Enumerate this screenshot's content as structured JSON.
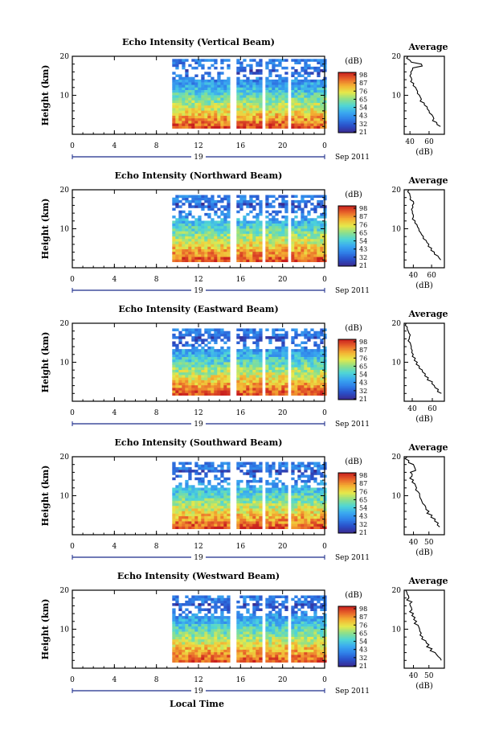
{
  "figure": {
    "xlabel": "Local Time",
    "ylabel": "Height (km)",
    "time_ticks": [
      "0",
      "4",
      "8",
      "12",
      "16",
      "20",
      "0"
    ],
    "height_ticks": [
      "20",
      "10"
    ],
    "date_day": "19",
    "date_month_year": "Sep 2011",
    "colorbar_unit": "(dB)",
    "colorbar_ticks": [
      "98",
      "87",
      "76",
      "65",
      "54",
      "43",
      "32",
      "21"
    ],
    "avg_title": "Average",
    "avg_unit": "(dB)",
    "colormap": [
      "#3a2a8e",
      "#2a4fc8",
      "#2f7fe8",
      "#3aa9f0",
      "#4fd6d6",
      "#8ee08a",
      "#e6e84a",
      "#f4b233",
      "#e8642a",
      "#c81e1e"
    ]
  },
  "chart_data": [
    {
      "type": "heatmap",
      "title": "Echo Intensity (Vertical Beam)",
      "xlabel": "",
      "ylabel": "Height (km)",
      "xlim": [
        0,
        24
      ],
      "ylim": [
        0,
        20
      ],
      "clim": [
        21,
        98
      ],
      "data_start_hour": 9.5,
      "data_gaps_hours": [
        [
          14.9,
          15.4
        ],
        [
          17.9,
          18.2
        ],
        [
          20.4,
          20.7
        ]
      ],
      "echo_top_km": 19,
      "low_echo_band_km": [
        14,
        18
      ],
      "profile": {
        "xlabel_ticks": [
          "40",
          "60"
        ],
        "xlim": [
          34,
          76
        ],
        "height_km": [
          2,
          3,
          4,
          5,
          6,
          7,
          8,
          9,
          10,
          11,
          12,
          13,
          14,
          15,
          16,
          17,
          18,
          19,
          20
        ],
        "mean_db": [
          72,
          68,
          65,
          63,
          60,
          58,
          55,
          52,
          50,
          48,
          46,
          44,
          42,
          40,
          41,
          43,
          52,
          40,
          38
        ]
      }
    },
    {
      "type": "heatmap",
      "title": "Echo Intensity (Northward Beam)",
      "xlabel": "",
      "ylabel": "Height (km)",
      "xlim": [
        0,
        24
      ],
      "ylim": [
        0,
        20
      ],
      "clim": [
        21,
        98
      ],
      "data_start_hour": 9.5,
      "data_gaps_hours": [
        [
          14.9,
          15.4
        ],
        [
          17.9,
          18.2
        ],
        [
          20.4,
          20.7
        ]
      ],
      "echo_top_km": 18,
      "low_echo_band_km": [
        12,
        15
      ],
      "profile": {
        "xlabel_ticks": [
          "40",
          "60"
        ],
        "xlim": [
          30,
          74
        ],
        "height_km": [
          2,
          3,
          4,
          5,
          6,
          7,
          8,
          9,
          10,
          11,
          12,
          13,
          14,
          15,
          16,
          17,
          18,
          19,
          20
        ],
        "mean_db": [
          70,
          67,
          63,
          60,
          57,
          54,
          51,
          48,
          46,
          44,
          42,
          40,
          39,
          38,
          39,
          40,
          37,
          36,
          35
        ]
      }
    },
    {
      "type": "heatmap",
      "title": "Echo Intensity (Eastward Beam)",
      "xlabel": "",
      "ylabel": "Height (km)",
      "xlim": [
        0,
        24
      ],
      "ylim": [
        0,
        20
      ],
      "clim": [
        21,
        98
      ],
      "data_start_hour": 9.5,
      "data_gaps_hours": [
        [
          14.9,
          15.4
        ],
        [
          17.9,
          18.2
        ],
        [
          20.4,
          20.7
        ]
      ],
      "echo_top_km": 18,
      "low_echo_band_km": [
        13,
        16
      ],
      "profile": {
        "xlabel_ticks": [
          "40",
          "60"
        ],
        "xlim": [
          32,
          72
        ],
        "height_km": [
          2,
          3,
          4,
          5,
          6,
          7,
          8,
          9,
          10,
          11,
          12,
          13,
          14,
          15,
          16,
          17,
          18,
          19,
          20
        ],
        "mean_db": [
          69,
          66,
          62,
          60,
          56,
          53,
          50,
          47,
          45,
          43,
          41,
          40,
          39,
          38,
          37,
          38,
          36,
          35,
          34
        ]
      }
    },
    {
      "type": "heatmap",
      "title": "Echo Intensity (Southward Beam)",
      "xlabel": "",
      "ylabel": "Height (km)",
      "xlim": [
        0,
        24
      ],
      "ylim": [
        0,
        20
      ],
      "clim": [
        21,
        98
      ],
      "data_start_hour": 9.5,
      "data_gaps_hours": [
        [
          14.9,
          15.4
        ],
        [
          17.9,
          18.2
        ],
        [
          20.4,
          20.7
        ]
      ],
      "echo_top_km": 18,
      "low_echo_band_km": [
        12,
        16
      ],
      "profile": {
        "xlabel_ticks": [
          "40",
          "50"
        ],
        "xlim": [
          34,
          60
        ],
        "height_km": [
          2,
          3,
          4,
          5,
          6,
          7,
          8,
          9,
          10,
          11,
          12,
          13,
          14,
          15,
          16,
          17,
          18,
          19,
          20
        ],
        "mean_db": [
          57,
          56,
          54,
          52,
          50,
          48,
          46,
          45,
          44,
          43,
          42,
          41,
          40,
          39,
          38,
          41,
          40,
          37,
          36
        ]
      }
    },
    {
      "type": "heatmap",
      "title": "Echo Intensity (Westward Beam)",
      "xlabel": "Local Time",
      "ylabel": "Height (km)",
      "xlim": [
        0,
        24
      ],
      "ylim": [
        0,
        20
      ],
      "clim": [
        21,
        98
      ],
      "data_start_hour": 9.5,
      "data_gaps_hours": [
        [
          14.9,
          15.4
        ],
        [
          17.9,
          18.2
        ],
        [
          20.4,
          20.7
        ]
      ],
      "echo_top_km": 18,
      "low_echo_band_km": [
        13,
        16
      ],
      "profile": {
        "xlabel_ticks": [
          "40",
          "50"
        ],
        "xlim": [
          34,
          60
        ],
        "height_km": [
          2,
          3,
          4,
          5,
          6,
          7,
          8,
          9,
          10,
          11,
          12,
          13,
          14,
          15,
          16,
          17,
          18,
          19,
          20
        ],
        "mean_db": [
          58,
          56,
          54,
          52,
          50,
          48,
          46,
          45,
          44,
          43,
          42,
          41,
          40,
          39,
          38,
          39,
          37,
          36,
          35
        ]
      }
    }
  ]
}
